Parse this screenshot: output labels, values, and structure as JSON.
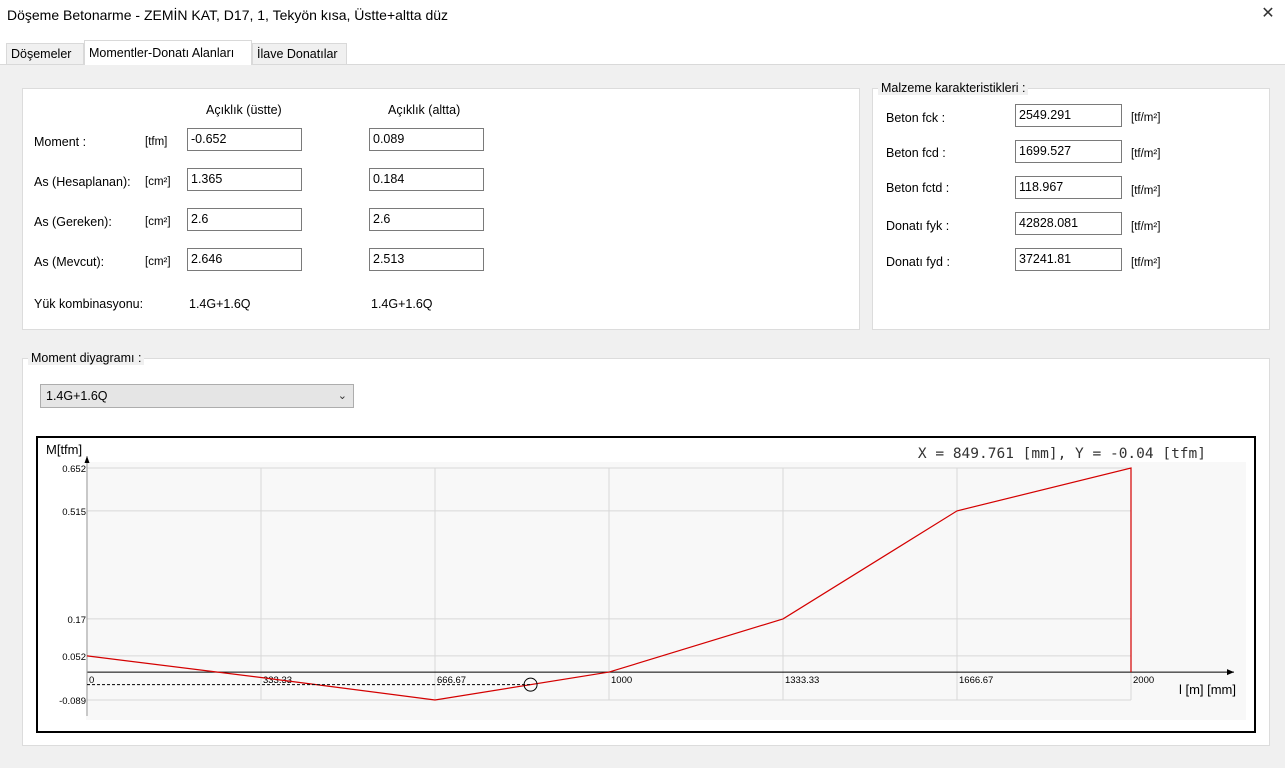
{
  "window": {
    "title": "Döşeme Betonarme - ZEMİN KAT, D17, 1, Tekyön kısa, Üstte+altta düz"
  },
  "tabs": [
    {
      "label": "Döşemeler"
    },
    {
      "label": "Momentler-Donatı Alanları"
    },
    {
      "label": "İlave Donatılar"
    }
  ],
  "results": {
    "header_top": "Açıklık (üstte)",
    "header_bottom": "Açıklık (altta)",
    "rows": [
      {
        "label": "Moment :",
        "unit": "[tfm]",
        "top": "-0.652",
        "bottom": "0.089"
      },
      {
        "label": "As (Hesaplanan):",
        "unit": "[cm²]",
        "top": "1.365",
        "bottom": "0.184"
      },
      {
        "label": "As (Gereken):",
        "unit": "[cm²]",
        "top": "2.6",
        "bottom": "2.6"
      },
      {
        "label": "As (Mevcut):",
        "unit": "[cm²]",
        "top": "2.646",
        "bottom": "2.513"
      }
    ],
    "combo_label": "Yük kombinasyonu:",
    "combo_top": "1.4G+1.6Q",
    "combo_bottom": "1.4G+1.6Q"
  },
  "material": {
    "legend": "Malzeme karakteristikleri :",
    "rows": [
      {
        "label": "Beton fck :",
        "value": "2549.291",
        "unit": "[tf/m²]"
      },
      {
        "label": "Beton fcd :",
        "value": "1699.527",
        "unit": "[tf/m²]"
      },
      {
        "label": "Beton fctd :",
        "value": "118.967",
        "unit": "[tf/m²]"
      },
      {
        "label": "Donatı fyk :",
        "value": "42828.081",
        "unit": "[tf/m²]"
      },
      {
        "label": "Donatı fyd :",
        "value": "37241.81",
        "unit": "[tf/m²]"
      }
    ]
  },
  "diagram": {
    "legend": "Moment diyagramı :",
    "selected_combo": "1.4G+1.6Q",
    "cursor_readout": "X = 849.761 [mm],  Y = -0.04 [tfm]"
  },
  "chart_data": {
    "type": "line",
    "ylabel": "M[tfm]",
    "xlabel": "l [m] [mm]",
    "x": [
      0,
      333.33,
      666.67,
      1000,
      1333.33,
      1666.67,
      2000,
      2000
    ],
    "series": [
      {
        "values": [
          0.052,
          -0.017,
          -0.089,
          0.0,
          0.17,
          0.515,
          0.652,
          0.0
        ]
      }
    ],
    "x_ticks": [
      "0",
      "333.33",
      "666.67",
      "1000",
      "1333.33",
      "1666.67",
      "2000"
    ],
    "y_ticks": [
      "0.652",
      "0.515",
      "0.17",
      "0.052",
      "-0.089"
    ],
    "xlim": [
      0,
      2000
    ],
    "ylim": [
      -0.089,
      0.652
    ],
    "cursor": {
      "x": 849.761,
      "y": -0.04
    },
    "colors": {
      "line": "#d40000",
      "grid": "#d8d8d8",
      "axis": "#000000"
    }
  }
}
